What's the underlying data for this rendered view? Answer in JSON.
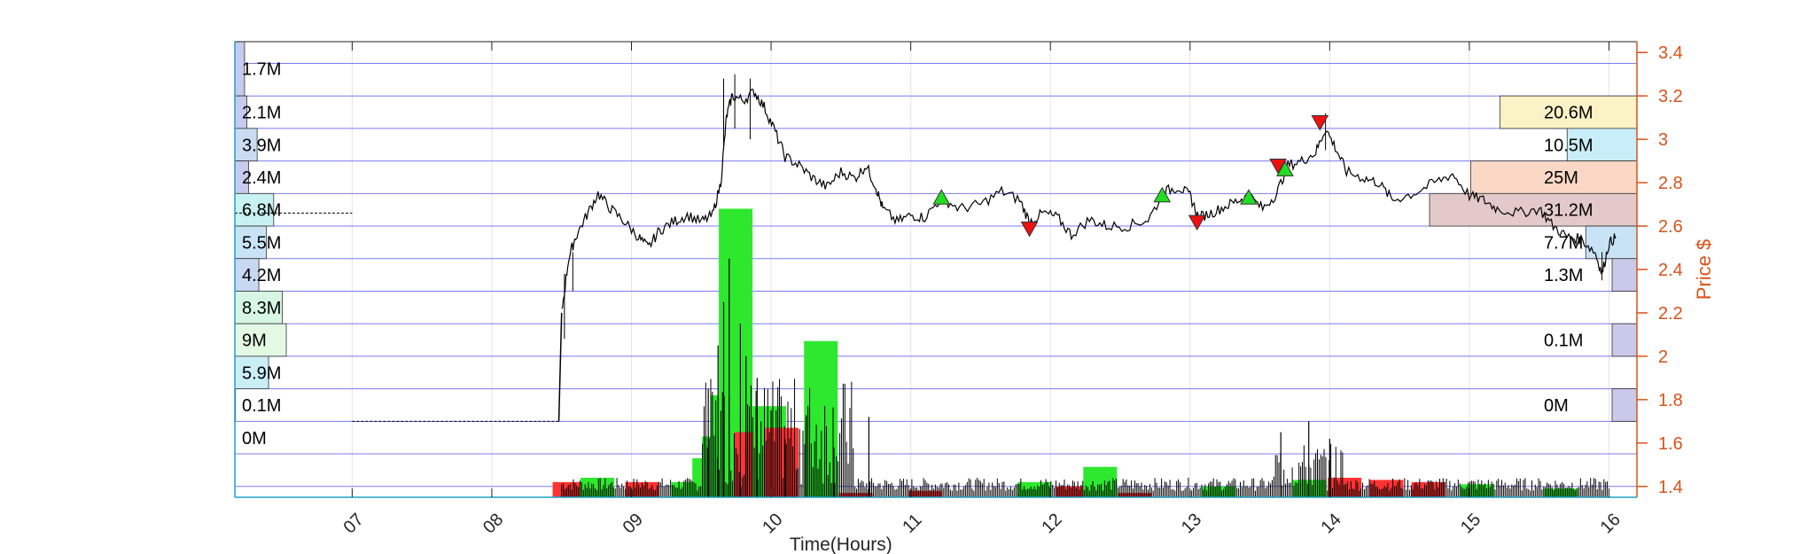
{
  "chart_data": {
    "type": "candlestick-volume-profile",
    "xlabel": "Time(Hours)",
    "ylabel": "Price $",
    "x_ticks": [
      "07",
      "08",
      "09",
      "10",
      "11",
      "12",
      "13",
      "14",
      "15",
      "16"
    ],
    "y_ticks": [
      "1.4",
      "1.6",
      "1.8",
      "2",
      "2.2",
      "2.4",
      "2.6",
      "2.8",
      "3",
      "3.2",
      "3.4"
    ],
    "xlim": [
      6.16,
      16.2
    ],
    "ylim": [
      1.35,
      3.45
    ],
    "price_bins": [
      1.4,
      1.55,
      1.7,
      1.85,
      2.0,
      2.15,
      2.3,
      2.45,
      2.6,
      2.75,
      2.9,
      3.05,
      3.2,
      3.35,
      3.45
    ],
    "left_profile": [
      {
        "price": 3.45,
        "volume_label": "1.7M",
        "volume": 1.7,
        "color": "#c9c9ee"
      },
      {
        "price": 3.2,
        "volume_label": "2.1M",
        "volume": 2.1,
        "color": "#c9c9ee"
      },
      {
        "price": 3.05,
        "volume_label": "3.9M",
        "volume": 3.9,
        "color": "#c9dcf2"
      },
      {
        "price": 2.9,
        "volume_label": "2.4M",
        "volume": 2.4,
        "color": "#c9c9ee"
      },
      {
        "price": 2.75,
        "volume_label": "6.8M",
        "volume": 6.8,
        "color": "#c9f2f2"
      },
      {
        "price": 2.6,
        "volume_label": "5.5M",
        "volume": 5.5,
        "color": "#c9e3f6"
      },
      {
        "price": 2.45,
        "volume_label": "4.2M",
        "volume": 4.2,
        "color": "#c9d8f2"
      },
      {
        "price": 2.3,
        "volume_label": "8.3M",
        "volume": 8.3,
        "color": "#d6f6e3"
      },
      {
        "price": 2.15,
        "volume_label": "9M",
        "volume": 9.0,
        "color": "#e3f9e3"
      },
      {
        "price": 2.0,
        "volume_label": "5.9M",
        "volume": 5.9,
        "color": "#c9eef6"
      },
      {
        "price": 1.85,
        "volume_label": "0.1M",
        "volume": 0.1,
        "color": "#d8d8f2"
      },
      {
        "price": 1.7,
        "volume_label": "0M",
        "volume": 0.0,
        "color": "#ffffff"
      }
    ],
    "right_profile": [
      {
        "price": 3.2,
        "volume_label": "20.6M",
        "volume": 20.6,
        "color": "#fbf3c5"
      },
      {
        "price": 3.05,
        "volume_label": "10.5M",
        "volume": 10.5,
        "color": "#c9eef9"
      },
      {
        "price": 2.9,
        "volume_label": "25M",
        "volume": 25.0,
        "color": "#fbd8c5"
      },
      {
        "price": 2.75,
        "volume_label": "31.2M",
        "volume": 31.2,
        "color": "#e3c9c9"
      },
      {
        "price": 2.6,
        "volume_label": "7.7M",
        "volume": 7.7,
        "color": "#c9e3f6"
      },
      {
        "price": 2.45,
        "volume_label": "1.3M",
        "volume": 1.3,
        "color": "#c9c9ea"
      },
      {
        "price": 2.15,
        "volume_label": "0.1M",
        "volume": 0.1,
        "color": "#c9c9ea"
      },
      {
        "price": 1.85,
        "volume_label": "0M",
        "volume": 0.0,
        "color": "#c9c9ea"
      }
    ],
    "price_series": [
      [
        6.16,
        2.66
      ],
      [
        7.0,
        2.66
      ],
      [
        7.0,
        1.7
      ],
      [
        8.48,
        1.7
      ],
      [
        8.5,
        2.2
      ],
      [
        8.55,
        2.45
      ],
      [
        8.6,
        2.55
      ],
      [
        8.68,
        2.65
      ],
      [
        8.76,
        2.75
      ],
      [
        8.85,
        2.68
      ],
      [
        8.95,
        2.62
      ],
      [
        9.05,
        2.55
      ],
      [
        9.12,
        2.5
      ],
      [
        9.2,
        2.58
      ],
      [
        9.3,
        2.62
      ],
      [
        9.4,
        2.65
      ],
      [
        9.5,
        2.62
      ],
      [
        9.58,
        2.65
      ],
      [
        9.64,
        2.8
      ],
      [
        9.68,
        3.1
      ],
      [
        9.72,
        3.2
      ],
      [
        9.8,
        3.18
      ],
      [
        9.88,
        3.22
      ],
      [
        9.95,
        3.15
      ],
      [
        10.02,
        3.05
      ],
      [
        10.1,
        2.92
      ],
      [
        10.2,
        2.88
      ],
      [
        10.3,
        2.82
      ],
      [
        10.4,
        2.78
      ],
      [
        10.5,
        2.85
      ],
      [
        10.6,
        2.82
      ],
      [
        10.68,
        2.88
      ],
      [
        10.75,
        2.78
      ],
      [
        10.8,
        2.68
      ],
      [
        10.9,
        2.62
      ],
      [
        11.0,
        2.65
      ],
      [
        11.1,
        2.64
      ],
      [
        11.22,
        2.73
      ],
      [
        11.35,
        2.68
      ],
      [
        11.5,
        2.7
      ],
      [
        11.65,
        2.76
      ],
      [
        11.78,
        2.72
      ],
      [
        11.85,
        2.62
      ],
      [
        11.95,
        2.66
      ],
      [
        12.05,
        2.64
      ],
      [
        12.15,
        2.56
      ],
      [
        12.28,
        2.63
      ],
      [
        12.4,
        2.6
      ],
      [
        12.55,
        2.6
      ],
      [
        12.7,
        2.63
      ],
      [
        12.82,
        2.76
      ],
      [
        12.92,
        2.78
      ],
      [
        13.0,
        2.74
      ],
      [
        13.06,
        2.64
      ],
      [
        13.15,
        2.66
      ],
      [
        13.25,
        2.69
      ],
      [
        13.35,
        2.72
      ],
      [
        13.42,
        2.74
      ],
      [
        13.52,
        2.68
      ],
      [
        13.62,
        2.75
      ],
      [
        13.7,
        2.88
      ],
      [
        13.8,
        2.9
      ],
      [
        13.9,
        2.94
      ],
      [
        13.97,
        3.05
      ],
      [
        14.05,
        2.95
      ],
      [
        14.12,
        2.85
      ],
      [
        14.25,
        2.82
      ],
      [
        14.35,
        2.8
      ],
      [
        14.45,
        2.72
      ],
      [
        14.6,
        2.75
      ],
      [
        14.75,
        2.8
      ],
      [
        14.88,
        2.84
      ],
      [
        15.0,
        2.74
      ],
      [
        15.1,
        2.72
      ],
      [
        15.2,
        2.68
      ],
      [
        15.35,
        2.66
      ],
      [
        15.5,
        2.68
      ],
      [
        15.6,
        2.6
      ],
      [
        15.7,
        2.55
      ],
      [
        15.8,
        2.54
      ],
      [
        15.9,
        2.48
      ],
      [
        15.95,
        2.38
      ],
      [
        16.0,
        2.52
      ],
      [
        16.05,
        2.55
      ]
    ],
    "price_spikes": [
      [
        8.52,
        2.08,
        2.38
      ],
      [
        8.58,
        2.3,
        2.48
      ],
      [
        9.66,
        2.95,
        3.28
      ],
      [
        9.74,
        3.05,
        3.3
      ],
      [
        9.85,
        3.0,
        3.28
      ],
      [
        13.97,
        2.95,
        3.12
      ],
      [
        15.95,
        2.35,
        2.48
      ]
    ],
    "up_markers": [
      [
        11.22,
        2.73
      ],
      [
        12.8,
        2.74
      ],
      [
        13.42,
        2.73
      ],
      [
        13.68,
        2.86
      ]
    ],
    "down_markers": [
      [
        11.85,
        2.59
      ],
      [
        13.05,
        2.62
      ],
      [
        13.63,
        2.88
      ],
      [
        13.93,
        3.08
      ]
    ],
    "volume_bars": [
      [
        8.55,
        1.35,
        1.42,
        "#ff3333"
      ],
      [
        8.75,
        1.35,
        1.44,
        "#2ee82e"
      ],
      [
        9.07,
        1.35,
        1.42,
        "#ff3333"
      ],
      [
        9.4,
        1.35,
        1.42,
        "#2ee82e"
      ],
      [
        9.55,
        1.35,
        1.53,
        "#2ee82e"
      ],
      [
        9.62,
        1.35,
        1.63,
        "#2ee82e"
      ],
      [
        9.68,
        1.35,
        1.82,
        "#2ee82e"
      ],
      [
        9.74,
        1.35,
        2.68,
        "#2ee82e"
      ],
      [
        9.85,
        1.35,
        1.65,
        "#ff3333"
      ],
      [
        9.98,
        1.35,
        1.77,
        "#2ee82e"
      ],
      [
        10.07,
        1.35,
        1.67,
        "#ff3333"
      ],
      [
        10.35,
        1.35,
        2.07,
        "#2ee82e"
      ],
      [
        10.6,
        1.35,
        1.37,
        "#ff3333"
      ],
      [
        11.1,
        1.35,
        1.38,
        "#ff3333"
      ],
      [
        11.88,
        1.35,
        1.42,
        "#2ee82e"
      ],
      [
        12.15,
        1.35,
        1.4,
        "#ff3333"
      ],
      [
        12.35,
        1.35,
        1.49,
        "#2ee82e"
      ],
      [
        12.6,
        1.35,
        1.37,
        "#ff3333"
      ],
      [
        13.2,
        1.35,
        1.4,
        "#2ee82e"
      ],
      [
        13.85,
        1.35,
        1.43,
        "#2ee82e"
      ],
      [
        14.1,
        1.35,
        1.44,
        "#ff3333"
      ],
      [
        14.4,
        1.35,
        1.43,
        "#ff3333"
      ],
      [
        14.7,
        1.35,
        1.42,
        "#ff3333"
      ],
      [
        15.05,
        1.35,
        1.41,
        "#2ee82e"
      ],
      [
        15.65,
        1.35,
        1.39,
        "#2ee82e"
      ]
    ],
    "volume_spikes": [
      [
        9.55,
        1.85
      ],
      [
        9.62,
        2.05
      ],
      [
        9.66,
        2.25
      ],
      [
        9.7,
        2.45
      ],
      [
        9.78,
        2.15
      ],
      [
        9.82,
        2.0
      ],
      [
        9.9,
        1.9
      ],
      [
        10.0,
        1.75
      ],
      [
        10.1,
        1.62
      ],
      [
        10.25,
        1.72
      ],
      [
        10.45,
        1.58
      ],
      [
        10.7,
        1.72
      ],
      [
        13.65,
        1.65
      ],
      [
        13.85,
        1.7
      ],
      [
        14.0,
        1.62
      ]
    ]
  }
}
